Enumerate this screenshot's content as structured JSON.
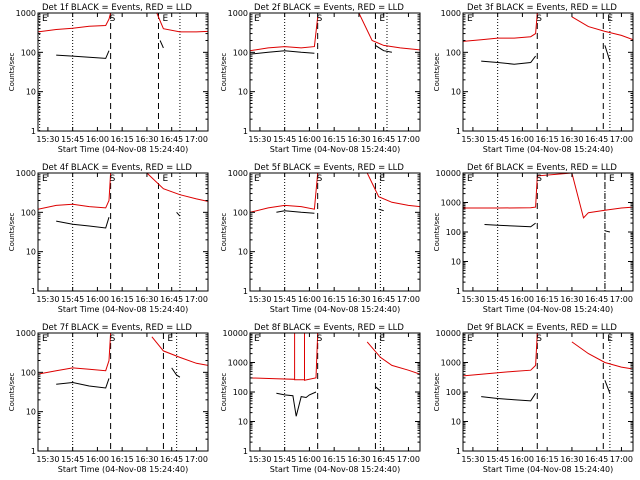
{
  "colors": {
    "events": "#000000",
    "lld": "#dd0000",
    "axes": "#000000",
    "background": "#ffffff"
  },
  "chart_data": [
    {
      "type": "line",
      "title": "Det 1f BLACK = Events, RED = LLD",
      "xlabel": "Start Time (04-Nov-08 15:24:40)",
      "ylabel": "Counts/sec",
      "xlim": [
        "15:24",
        "17:07"
      ],
      "ylim": [
        1,
        1000
      ],
      "yscale": "log",
      "x_ticks": [
        "15:30",
        "15:45",
        "16:00",
        "16:15",
        "16:30",
        "16:45",
        "17:00"
      ],
      "y_ticks": [
        "1",
        "10",
        "100",
        "1000"
      ],
      "markers": {
        "labels": [
          "E",
          "S",
          "E"
        ],
        "dotted_lines": [
          "15:25",
          "15:45",
          "16:50"
        ],
        "dashed_lines": [
          "16:08",
          "16:37"
        ]
      },
      "series": [
        {
          "name": "Events",
          "color": "#000000",
          "x": [
            "15:35",
            "15:45",
            "15:55",
            "16:05",
            "16:07"
          ],
          "values": [
            85,
            80,
            75,
            70,
            110
          ]
        },
        {
          "name": "Events",
          "color": "#000000",
          "x": [
            "16:38",
            "16:40"
          ],
          "values": [
            200,
            130
          ]
        },
        {
          "name": "LLD",
          "color": "#dd0000",
          "x": [
            "15:24",
            "15:35",
            "15:45",
            "15:55",
            "16:05",
            "16:07",
            "16:08"
          ],
          "values": [
            330,
            380,
            410,
            460,
            480,
            700,
            1000
          ]
        },
        {
          "name": "LLD",
          "color": "#dd0000",
          "x": [
            "16:36",
            "16:40",
            "16:50",
            "17:00",
            "17:07"
          ],
          "values": [
            1000,
            400,
            330,
            330,
            340
          ]
        }
      ]
    },
    {
      "type": "line",
      "title": "Det 2f BLACK = Events, RED = LLD",
      "xlabel": "Start Time (04-Nov-08 15:24:40)",
      "ylabel": "Counts/sec",
      "xlim": [
        "15:24",
        "17:07"
      ],
      "ylim": [
        1,
        1000
      ],
      "yscale": "log",
      "x_ticks": [
        "15:30",
        "15:45",
        "16:00",
        "16:15",
        "16:30",
        "16:45",
        "17:00"
      ],
      "y_ticks": [
        "1",
        "10",
        "100",
        "1000"
      ],
      "markers": {
        "labels": [
          "E",
          "S",
          "E"
        ],
        "dotted_lines": [
          "15:45",
          "16:47"
        ],
        "dashed_lines": [
          "16:05",
          "16:40"
        ]
      },
      "series": [
        {
          "name": "Events",
          "color": "#000000",
          "x": [
            "15:24",
            "15:35",
            "15:45",
            "15:55",
            "16:03"
          ],
          "values": [
            90,
            100,
            110,
            100,
            95
          ]
        },
        {
          "name": "Events",
          "color": "#000000",
          "x": [
            "16:40",
            "16:45",
            "16:50"
          ],
          "values": [
            150,
            110,
            100
          ]
        },
        {
          "name": "LLD",
          "color": "#dd0000",
          "x": [
            "15:24",
            "15:35",
            "15:45",
            "15:55",
            "16:03",
            "16:05"
          ],
          "values": [
            110,
            130,
            140,
            130,
            140,
            800
          ]
        },
        {
          "name": "LLD",
          "color": "#dd0000",
          "x": [
            "16:30",
            "16:38",
            "16:45",
            "16:55",
            "17:07"
          ],
          "values": [
            1000,
            200,
            150,
            130,
            115
          ]
        }
      ]
    },
    {
      "type": "line",
      "title": "Det 3f BLACK = Events, RED = LLD",
      "xlabel": "Start Time (04-Nov-08 15:24:40)",
      "ylabel": "Counts/sec",
      "xlim": [
        "15:24",
        "17:07"
      ],
      "ylim": [
        1,
        1000
      ],
      "yscale": "log",
      "x_ticks": [
        "15:30",
        "15:45",
        "16:00",
        "16:15",
        "16:30",
        "16:45",
        "17:00"
      ],
      "y_ticks": [
        "1",
        "10",
        "100",
        "1000"
      ],
      "markers": {
        "labels": [
          "E",
          "S",
          "E"
        ],
        "dotted_lines": [
          "15:45",
          "16:53"
        ],
        "dashed_lines": [
          "16:09",
          "16:49"
        ]
      },
      "series": [
        {
          "name": "Events",
          "color": "#000000",
          "x": [
            "15:35",
            "15:45",
            "15:55",
            "16:05",
            "16:08"
          ],
          "values": [
            60,
            55,
            50,
            55,
            80
          ]
        },
        {
          "name": "Events",
          "color": "#000000",
          "x": [
            "16:50",
            "16:53"
          ],
          "values": [
            150,
            60
          ]
        },
        {
          "name": "LLD",
          "color": "#dd0000",
          "x": [
            "15:24",
            "15:35",
            "15:45",
            "15:55",
            "16:05",
            "16:08",
            "16:09"
          ],
          "values": [
            190,
            210,
            230,
            230,
            250,
            300,
            1000
          ]
        },
        {
          "name": "LLD",
          "color": "#dd0000",
          "x": [
            "16:30",
            "16:40",
            "16:50",
            "17:00",
            "17:07"
          ],
          "values": [
            800,
            450,
            340,
            270,
            210
          ]
        }
      ]
    },
    {
      "type": "line",
      "title": "Det 4f BLACK = Events, RED = LLD",
      "xlabel": "Start Time (04-Nov-08 15:24:40)",
      "ylabel": "Counts/sec",
      "xlim": [
        "15:24",
        "17:07"
      ],
      "ylim": [
        1,
        1000
      ],
      "yscale": "log",
      "x_ticks": [
        "15:30",
        "15:45",
        "16:00",
        "16:15",
        "16:30",
        "16:45",
        "17:00"
      ],
      "y_ticks": [
        "1",
        "10",
        "100",
        "1000"
      ],
      "markers": {
        "labels": [
          "E",
          "S",
          "E"
        ],
        "dotted_lines": [
          "15:45",
          "16:50"
        ],
        "dashed_lines": [
          "16:08",
          "16:37"
        ]
      },
      "series": [
        {
          "name": "Events",
          "color": "#000000",
          "x": [
            "15:35",
            "15:45",
            "15:55",
            "16:05",
            "16:07"
          ],
          "values": [
            60,
            50,
            45,
            40,
            75
          ]
        },
        {
          "name": "Events",
          "color": "#000000",
          "x": [
            "16:48",
            "16:50"
          ],
          "values": [
            100,
            80
          ]
        },
        {
          "name": "LLD",
          "color": "#dd0000",
          "x": [
            "15:24",
            "15:35",
            "15:45",
            "15:55",
            "16:05",
            "16:07",
            "16:08"
          ],
          "values": [
            120,
            150,
            160,
            140,
            130,
            200,
            1000
          ]
        },
        {
          "name": "LLD",
          "color": "#dd0000",
          "x": [
            "16:30",
            "16:40",
            "16:50",
            "17:00",
            "17:07"
          ],
          "values": [
            1000,
            400,
            280,
            220,
            190
          ]
        }
      ]
    },
    {
      "type": "line",
      "title": "Det 5f BLACK = Events, RED = LLD",
      "xlabel": "Start Time (04-Nov-08 15:24:40)",
      "ylabel": "Counts/sec",
      "xlim": [
        "15:24",
        "17:07"
      ],
      "ylim": [
        1,
        1000
      ],
      "yscale": "log",
      "x_ticks": [
        "15:30",
        "15:45",
        "16:00",
        "16:15",
        "16:30",
        "16:45",
        "17:00"
      ],
      "y_ticks": [
        "1",
        "10",
        "100",
        "1000"
      ],
      "markers": {
        "labels": [
          "E",
          "S",
          "E"
        ],
        "dotted_lines": [
          "15:45",
          "16:43"
        ],
        "dashed_lines": [
          "16:05",
          "16:40"
        ]
      },
      "series": [
        {
          "name": "Events",
          "color": "#000000",
          "x": [
            "15:40",
            "15:45",
            "15:55",
            "16:03"
          ],
          "values": [
            100,
            110,
            100,
            95
          ]
        },
        {
          "name": "Events",
          "color": "#000000",
          "x": [
            "16:42",
            "16:45"
          ],
          "values": [
            120,
            110
          ]
        },
        {
          "name": "LLD",
          "color": "#dd0000",
          "x": [
            "15:24",
            "15:35",
            "15:45",
            "15:55",
            "16:03",
            "16:05"
          ],
          "values": [
            100,
            130,
            150,
            140,
            120,
            1000
          ]
        },
        {
          "name": "LLD",
          "color": "#dd0000",
          "x": [
            "16:35",
            "16:42",
            "16:50",
            "17:00",
            "17:07"
          ],
          "values": [
            1000,
            250,
            180,
            150,
            140
          ]
        }
      ]
    },
    {
      "type": "line",
      "title": "Det 6f BLACK = Events, RED = LLD",
      "xlabel": "Start Time (04-Nov-08 15:24:40)",
      "ylabel": "Counts/sec",
      "xlim": [
        "15:24",
        "17:07"
      ],
      "ylim": [
        1,
        10000
      ],
      "yscale": "log",
      "x_ticks": [
        "15:30",
        "15:45",
        "16:00",
        "16:15",
        "16:30",
        "16:45",
        "17:00"
      ],
      "y_ticks": [
        "1",
        "10",
        "100",
        "1000",
        "10000"
      ],
      "markers": {
        "labels": [
          "E",
          "S",
          "E"
        ],
        "dotted_lines": [
          "15:45",
          "16:50"
        ],
        "dashed_lines": [
          "16:09",
          "16:50"
        ]
      },
      "series": [
        {
          "name": "Events",
          "color": "#000000",
          "x": [
            "15:37",
            "15:45",
            "15:55",
            "16:05",
            "16:08"
          ],
          "values": [
            180,
            170,
            160,
            150,
            200
          ]
        },
        {
          "name": "Events",
          "color": "#000000",
          "x": [
            "16:50",
            "16:53"
          ],
          "values": [
            110,
            100
          ]
        },
        {
          "name": "LLD",
          "color": "#dd0000",
          "x": [
            "15:24",
            "15:45",
            "16:05",
            "16:08",
            "16:09",
            "16:30",
            "16:37",
            "16:40",
            "16:50",
            "17:00",
            "17:07"
          ],
          "values": [
            650,
            650,
            660,
            700,
            8000,
            10000,
            300,
            450,
            550,
            650,
            700
          ]
        }
      ]
    },
    {
      "type": "line",
      "title": "Det 7f BLACK = Events, RED = LLD",
      "xlabel": "Start Time (04-Nov-08 15:24:40)",
      "ylabel": "Counts/sec",
      "xlim": [
        "15:24",
        "17:07"
      ],
      "ylim": [
        1,
        1000
      ],
      "yscale": "log",
      "x_ticks": [
        "15:30",
        "15:45",
        "16:00",
        "16:15",
        "16:30",
        "16:45",
        "17:00"
      ],
      "y_ticks": [
        "1",
        "10",
        "100",
        "1000"
      ],
      "markers": {
        "labels": [
          "E",
          "S",
          "E"
        ],
        "dotted_lines": [
          "15:45",
          "16:48"
        ],
        "dashed_lines": [
          "16:08",
          "16:40"
        ]
      },
      "series": [
        {
          "name": "Events",
          "color": "#000000",
          "x": [
            "15:35",
            "15:45",
            "15:55",
            "16:05",
            "16:07"
          ],
          "values": [
            50,
            55,
            45,
            40,
            70
          ]
        },
        {
          "name": "Events",
          "color": "#000000",
          "x": [
            "16:45",
            "16:48",
            "16:50"
          ],
          "values": [
            130,
            85,
            75
          ]
        },
        {
          "name": "LLD",
          "color": "#dd0000",
          "x": [
            "15:24",
            "15:35",
            "15:45",
            "15:55",
            "16:05",
            "16:07",
            "16:08"
          ],
          "values": [
            90,
            110,
            130,
            120,
            110,
            200,
            1000
          ]
        },
        {
          "name": "LLD",
          "color": "#dd0000",
          "x": [
            "16:33",
            "16:40",
            "16:50",
            "17:00",
            "17:07"
          ],
          "values": [
            800,
            350,
            240,
            170,
            150
          ]
        }
      ]
    },
    {
      "type": "line",
      "title": "Det 8f BLACK = Events, RED = LLD",
      "xlabel": "Start Time (04-Nov-08 15:24:40)",
      "ylabel": "Counts/sec",
      "xlim": [
        "15:24",
        "17:07"
      ],
      "ylim": [
        1,
        10000
      ],
      "yscale": "log",
      "x_ticks": [
        "15:30",
        "15:45",
        "16:00",
        "16:15",
        "16:30",
        "16:45",
        "17:00"
      ],
      "y_ticks": [
        "1",
        "10",
        "100",
        "1000",
        "10000"
      ],
      "markers": {
        "labels": [
          "E",
          "S",
          "E"
        ],
        "dotted_lines": [
          "15:45",
          "16:43"
        ],
        "dashed_lines": [
          "16:05",
          "16:40"
        ]
      },
      "series": [
        {
          "name": "Events",
          "color": "#000000",
          "x": [
            "15:40",
            "15:45",
            "15:50",
            "15:52",
            "15:55",
            "15:58",
            "16:00",
            "16:04"
          ],
          "values": [
            90,
            80,
            75,
            15,
            70,
            65,
            80,
            100
          ]
        },
        {
          "name": "Events",
          "color": "#000000",
          "x": [
            "16:40",
            "16:43"
          ],
          "values": [
            150,
            110
          ]
        },
        {
          "name": "LLD",
          "color": "#dd0000",
          "x": [
            "15:24",
            "15:40",
            "15:51",
            "15:51",
            "15:51",
            "15:57",
            "15:57",
            "15:57",
            "16:04",
            "16:05"
          ],
          "values": [
            300,
            280,
            270,
            10000,
            260,
            260,
            10000,
            250,
            300,
            10000
          ]
        },
        {
          "name": "LLD",
          "color": "#dd0000",
          "x": [
            "16:35",
            "16:43",
            "16:50",
            "17:00",
            "17:07"
          ],
          "values": [
            5000,
            1500,
            800,
            550,
            400
          ]
        }
      ]
    },
    {
      "type": "line",
      "title": "Det 9f BLACK = Events, RED = LLD",
      "xlabel": "Start Time (04-Nov-08 15:24:40)",
      "ylabel": "Counts/sec",
      "xlim": [
        "15:24",
        "17:07"
      ],
      "ylim": [
        1,
        10000
      ],
      "yscale": "log",
      "x_ticks": [
        "15:30",
        "15:45",
        "16:00",
        "16:15",
        "16:30",
        "16:45",
        "17:00"
      ],
      "y_ticks": [
        "1",
        "10",
        "100",
        "1000",
        "10000"
      ],
      "markers": {
        "labels": [
          "E",
          "S",
          "E"
        ],
        "dotted_lines": [
          "15:45",
          "16:53"
        ],
        "dashed_lines": [
          "16:09",
          "16:49"
        ]
      },
      "series": [
        {
          "name": "Events",
          "color": "#000000",
          "x": [
            "15:35",
            "15:45",
            "15:55",
            "16:05",
            "16:08"
          ],
          "values": [
            70,
            60,
            55,
            50,
            90
          ]
        },
        {
          "name": "Events",
          "color": "#000000",
          "x": [
            "16:50",
            "16:53"
          ],
          "values": [
            250,
            90
          ]
        },
        {
          "name": "LLD",
          "color": "#dd0000",
          "x": [
            "15:24",
            "15:35",
            "15:45",
            "15:55",
            "16:05",
            "16:08",
            "16:09"
          ],
          "values": [
            350,
            400,
            450,
            500,
            550,
            800,
            10000
          ]
        },
        {
          "name": "LLD",
          "color": "#dd0000",
          "x": [
            "16:30",
            "16:40",
            "16:50",
            "17:00",
            "17:07"
          ],
          "values": [
            5000,
            2000,
            1000,
            700,
            600
          ]
        }
      ]
    }
  ]
}
